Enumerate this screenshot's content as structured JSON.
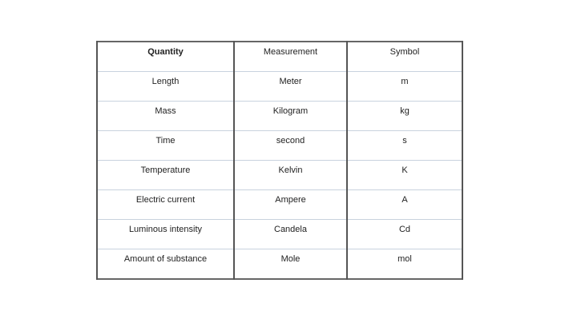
{
  "table": {
    "headers": [
      "Quantity",
      "Measurement",
      "Symbol"
    ],
    "rows": [
      [
        "Length",
        "Meter",
        "m"
      ],
      [
        "Mass",
        "Kilogram",
        "kg"
      ],
      [
        "Time",
        "second",
        "s"
      ],
      [
        "Temperature",
        "Kelvin",
        "K"
      ],
      [
        "Electric current",
        "Ampere",
        "A"
      ],
      [
        "Luminous intensity",
        "Candela",
        "Cd"
      ],
      [
        "Amount of substance",
        "Mole",
        "mol"
      ]
    ]
  }
}
